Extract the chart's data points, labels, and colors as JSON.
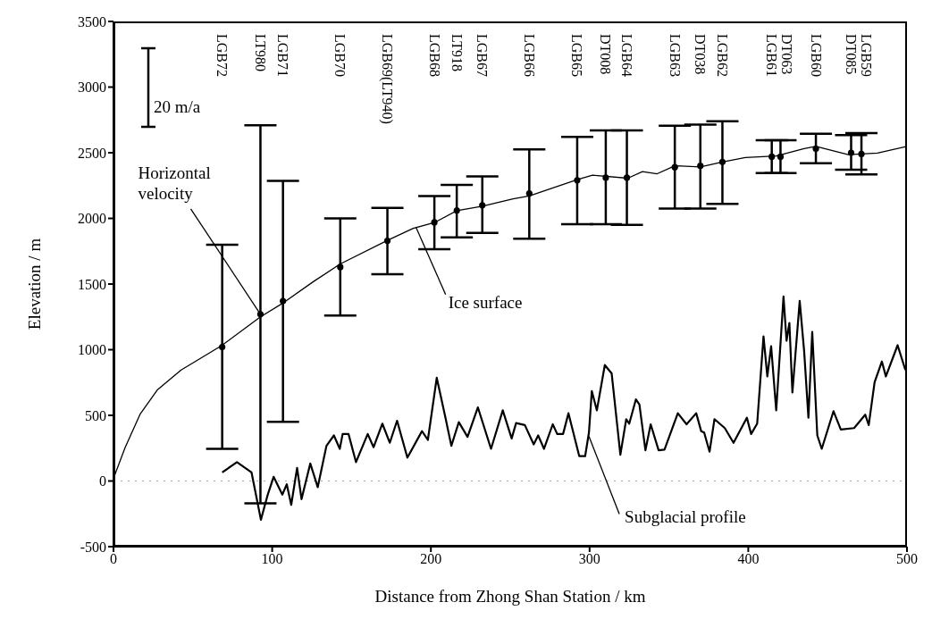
{
  "chart_data": {
    "type": "line",
    "xlabel": "Distance from Zhong Shan Station / km",
    "ylabel": "Elevation / m",
    "xlim": [
      0,
      500
    ],
    "ylim": [
      -500,
      3500
    ],
    "xticks": [
      0,
      100,
      200,
      300,
      400,
      500
    ],
    "yticks": [
      -500,
      0,
      500,
      1000,
      1500,
      2000,
      2500,
      3000,
      3500
    ],
    "grid": false,
    "marker": "none",
    "series": [
      {
        "color": "#000000",
        "x": [
          0,
          7.4,
          16.7,
          27.8,
          42.6,
          59.2,
          68.5,
          92.6,
          107.4,
          125.9,
          142.9,
          172.6,
          188.9,
          202.2,
          216.3,
          232.4,
          251.8,
          262,
          292.2,
          301.8,
          324.1,
          333.3,
          342.6,
          353.7,
          369.8,
          383.7,
          398.1,
          417.6,
          435.2,
          442.6,
          463,
          481.4,
          500
        ],
        "values": [
          20,
          257,
          507,
          696,
          845,
          966,
          1034,
          1250,
          1360,
          1518,
          1653,
          1833,
          1924,
          1968,
          2059,
          2093,
          2149,
          2171,
          2295,
          2329,
          2306,
          2356,
          2340,
          2401,
          2392,
          2430,
          2464,
          2475,
          2532,
          2549,
          2486,
          2498,
          2549
        ]
      },
      {
        "color": "#000000",
        "x": [
          68.5,
          77.8,
          87,
          92.9,
          97.2,
          100.9,
          106.4,
          109.2,
          112,
          115.7,
          118.5,
          124,
          128.7,
          134.2,
          138.9,
          142.6,
          144.4,
          148.1,
          152.8,
          160.2,
          163.9,
          169.4,
          174.1,
          178.7,
          185.2,
          194.4,
          198.1,
          203.7,
          209.2,
          212.9,
          217.6,
          223.1,
          229.6,
          237.9,
          245.3,
          250.9,
          253.7,
          259.2,
          264.8,
          267.6,
          271.3,
          276.8,
          279.6,
          283.3,
          286.7,
          293.5,
          297.2,
          299.6,
          301.4,
          304.6,
          309.6,
          313.9,
          319.4,
          323.1,
          325,
          329.2,
          331.4,
          335.2,
          338.5,
          343.5,
          347.2,
          355.6,
          361.1,
          367.2,
          370.3,
          372.2,
          375.6,
          378.7,
          385.2,
          390.7,
          399.1,
          401.8,
          405.6,
          409.6,
          412,
          414.4,
          417.6,
          422.2,
          424.1,
          425.9,
          427.8,
          432.4,
          435.2,
          437.9,
          440.3,
          443.5,
          446.3,
          453.7,
          458.3,
          466.7,
          473.7,
          475.9,
          479.6,
          484.2,
          486.7,
          494.1,
          499
        ],
        "values": [
          65,
          144,
          65,
          -295,
          -104,
          32,
          -104,
          -25,
          -182,
          99,
          -138,
          133,
          -47,
          268,
          347,
          245,
          358,
          358,
          144,
          358,
          257,
          437,
          291,
          459,
          178,
          380,
          313,
          786,
          482,
          268,
          448,
          336,
          561,
          245,
          538,
          324,
          441,
          426,
          279,
          347,
          245,
          432,
          358,
          358,
          516,
          189,
          189,
          369,
          685,
          538,
          883,
          820,
          200,
          471,
          437,
          622,
          583,
          234,
          432,
          234,
          239,
          516,
          432,
          516,
          380,
          369,
          223,
          471,
          403,
          291,
          482,
          358,
          437,
          1101,
          797,
          1027,
          538,
          1405,
          1068,
          1203,
          674,
          1372,
          989,
          482,
          1135,
          347,
          245,
          532,
          392,
          403,
          505,
          426,
          752,
          910,
          797,
          1034,
          845
        ]
      },
      {
        "type": "scatter",
        "marker": "circle",
        "color": "#000000",
        "x": [
          68.5,
          92.6,
          106.8,
          142.9,
          172.6,
          202.2,
          216.3,
          232.4,
          262,
          292.2,
          310.2,
          323.5,
          353.7,
          369.8,
          383.7,
          414.8,
          420.3,
          442.6,
          464.8,
          471.3
        ],
        "values": [
          1020,
          1270,
          1370,
          1630,
          1830,
          1970,
          2060,
          2100,
          2190,
          2290,
          2310,
          2310,
          2390,
          2400,
          2430,
          2470,
          2470,
          2530,
          2500,
          2490
        ],
        "errors": [
          [
            245,
            1800
          ],
          [
            -170,
            2710
          ],
          [
            450,
            2285
          ],
          [
            1260,
            2000
          ],
          [
            1575,
            2080
          ],
          [
            1765,
            2170
          ],
          [
            1855,
            2255
          ],
          [
            1890,
            2320
          ],
          [
            1845,
            2525
          ],
          [
            1955,
            2620
          ],
          [
            1955,
            2670
          ],
          [
            1950,
            2670
          ],
          [
            2075,
            2705
          ],
          [
            2075,
            2715
          ],
          [
            2110,
            2740
          ],
          [
            2345,
            2595
          ],
          [
            2345,
            2595
          ],
          [
            2420,
            2645
          ],
          [
            2370,
            2635
          ],
          [
            2335,
            2650
          ]
        ]
      }
    ],
    "ref_lines": [
      {
        "axis": "y",
        "value": 0,
        "line_style": "dotted",
        "color": "#aaaaaa"
      }
    ],
    "annotations": [
      "20 m/a",
      {
        "text": "Horizontal\nvelocity",
        "x": 92.6,
        "y": 1270
      },
      {
        "text": "Ice surface",
        "x": 190.7,
        "y": 1930
      },
      {
        "text": "Subglacial profile",
        "x": 299.6,
        "y": 340
      },
      "LGB72",
      "LT980",
      "LGB71",
      "LGB70",
      "LGB69(LT940)",
      "LGB68",
      "LT918",
      "LGB67",
      "LGB66",
      "LGB65",
      "DT008",
      "LGB64",
      "LGB63",
      "DT038",
      "LGB62",
      "LGB61",
      "DT063",
      "LGB60",
      "DT085",
      "LGB59"
    ]
  }
}
